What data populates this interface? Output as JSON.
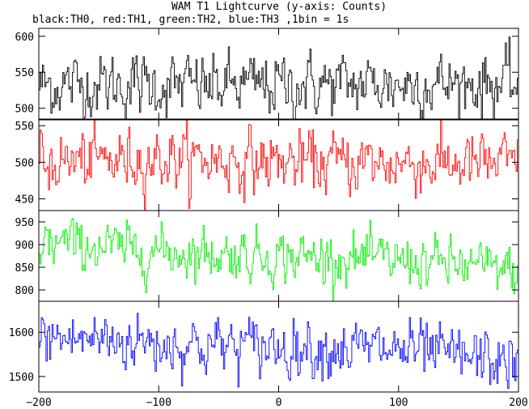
{
  "chart_data": {
    "type": "line",
    "title": "WAM T1 Lightcurve (y-axis: Counts)",
    "subtitle": "black:TH0, red:TH1, green:TH2, blue:TH3 ,1bin = 1s",
    "xlim": [
      -200,
      200
    ],
    "x_ticks": [
      -200,
      -100,
      0,
      100,
      200
    ],
    "grid": false,
    "panels": [
      {
        "series": "TH0",
        "color": "#000000",
        "ylim": [
          485,
          611
        ],
        "y_ticks": [
          500,
          550,
          600
        ],
        "level_x": [
          -200,
          -150,
          -100,
          -50,
          0,
          50,
          100,
          150,
          200
        ],
        "level_y": [
          532,
          533,
          532,
          531,
          532,
          533,
          533,
          534,
          534
        ],
        "noise_sd": 22
      },
      {
        "series": "TH1",
        "color": "#ff0000",
        "ylim": [
          434,
          558
        ],
        "y_ticks": [
          450,
          500,
          550
        ],
        "level_x": [
          -200,
          -150,
          -100,
          -50,
          0,
          50,
          100,
          150,
          200
        ],
        "level_y": [
          500,
          502,
          505,
          503,
          500,
          500,
          499,
          498,
          497
        ],
        "noise_sd": 21
      },
      {
        "series": "TH2",
        "color": "#00ee00",
        "ylim": [
          775,
          975
        ],
        "y_ticks": [
          800,
          850,
          900,
          950
        ],
        "level_x": [
          -200,
          -150,
          -100,
          -50,
          0,
          50,
          100,
          150,
          200
        ],
        "level_y": [
          905,
          895,
          885,
          880,
          875,
          870,
          865,
          855,
          840
        ],
        "noise_sd": 28
      },
      {
        "series": "TH3",
        "color": "#0000ff",
        "ylim": [
          1465,
          1670
        ],
        "y_ticks": [
          1500,
          1600
        ],
        "level_x": [
          -200,
          -150,
          -100,
          -50,
          0,
          50,
          100,
          150,
          200
        ],
        "level_y": [
          1585,
          1585,
          1575,
          1570,
          1568,
          1565,
          1560,
          1545,
          1530
        ],
        "noise_sd": 33
      }
    ]
  }
}
